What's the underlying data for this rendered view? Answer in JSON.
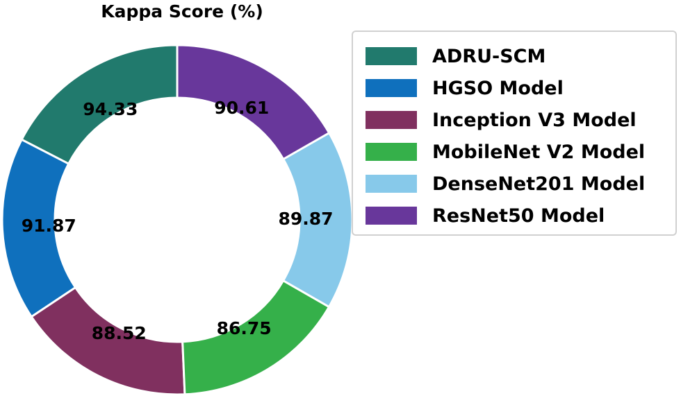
{
  "chart_data": {
    "type": "pie",
    "variant": "donut",
    "title": "Kappa Score (%)",
    "categories": [
      "ADRU-SCM",
      "HGSO Model",
      "Inception V3 Model",
      "MobileNet V2 Model",
      "DenseNet201 Model",
      "ResNet50 Model"
    ],
    "values": [
      94.33,
      91.87,
      88.52,
      86.75,
      89.87,
      90.61
    ],
    "value_labels": [
      "94.33",
      "91.87",
      "88.52",
      "86.75",
      "89.87",
      "90.61"
    ],
    "colors": [
      "#217a6d",
      "#0f70bd",
      "#80305f",
      "#35b04a",
      "#87c9ea",
      "#68379b"
    ],
    "start": "top",
    "direction": "counterclockwise",
    "legend_position": "right"
  }
}
